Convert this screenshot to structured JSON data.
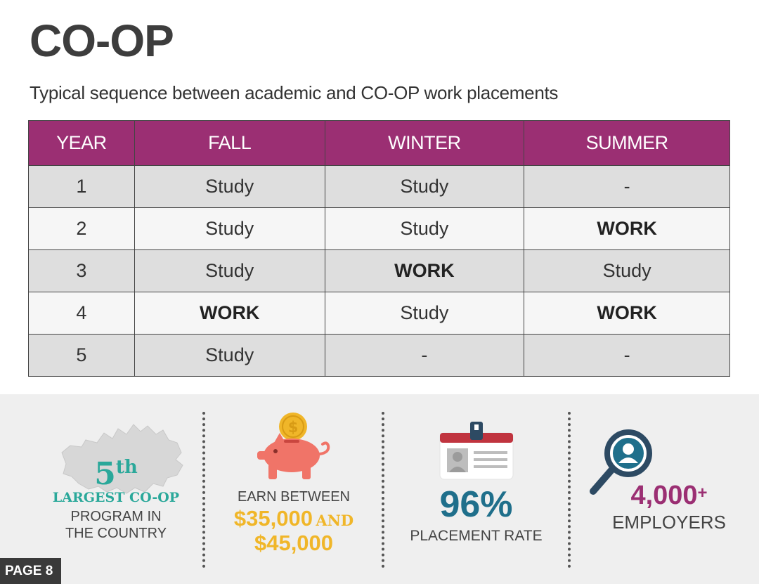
{
  "page": {
    "title": "CO-OP",
    "subtitle": "Typical sequence between academic and CO-OP work placements",
    "page_label": "PAGE 8"
  },
  "table": {
    "headers": [
      "YEAR",
      "FALL",
      "WINTER",
      "SUMMER"
    ],
    "rows": [
      [
        "1",
        "Study",
        "Study",
        "-"
      ],
      [
        "2",
        "Study",
        "Study",
        "WORK"
      ],
      [
        "3",
        "Study",
        "WORK",
        "Study"
      ],
      [
        "4",
        "WORK",
        "Study",
        "WORK"
      ],
      [
        "5",
        "Study",
        "-",
        "-"
      ]
    ]
  },
  "stats": {
    "rank": {
      "number": "5",
      "suffix": "th",
      "line1": "LARGEST CO-OP",
      "line2": "PROGRAM IN",
      "line3": "THE COUNTRY"
    },
    "earn": {
      "line1": "EARN BETWEEN",
      "amount1": "$35,000",
      "conj": "AND",
      "amount2": "$45,000",
      "coin_symbol": "$"
    },
    "placement": {
      "value": "96%",
      "label": "PLACEMENT RATE"
    },
    "employers": {
      "value": "4,000",
      "plus": "+",
      "label": "EMPLOYERS"
    }
  },
  "colors": {
    "header_purple": "#9b2f73",
    "teal": "#2aa89a",
    "gold": "#f0b629",
    "blue": "#1f6f8b",
    "magenta": "#9b2f73",
    "pig": "#f07468",
    "row_dark": "#dedede",
    "row_light": "#f6f6f6"
  },
  "icons": [
    "canada-map-icon",
    "piggy-bank-icon",
    "id-badge-icon",
    "magnifier-icon"
  ]
}
